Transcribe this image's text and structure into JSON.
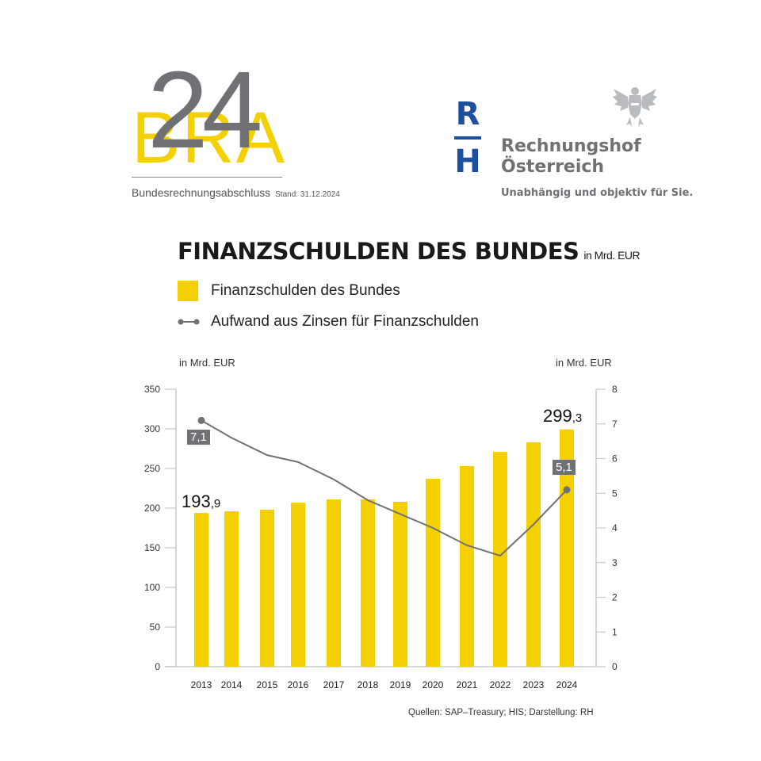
{
  "header": {
    "logo_left": {
      "letters": "BRA",
      "year": "24",
      "subtitle": "Bundesrechnungsabschluss",
      "stand": "Stand: 31.12.2024"
    },
    "logo_right": {
      "mark_top": "R",
      "mark_bottom": "H",
      "name_line1": "Rechnungshof",
      "name_line2": "Österreich",
      "tagline": "Unabhängig und objektiv für Sie.",
      "emblem": "austrian-eagle-icon"
    }
  },
  "chart_title": "FINANZSCHULDEN DES BUNDES",
  "chart_title_unit": "in Mrd. EUR",
  "legend": [
    {
      "label": "Finanzschulden des Bundes",
      "type": "bar",
      "color": "#f5d000"
    },
    {
      "label": "Aufwand aus Zinsen für Finanzschulden",
      "type": "line",
      "color": "#6f7174"
    }
  ],
  "axis_left_unit": "in Mrd. EUR",
  "axis_right_unit": "in Mrd. EUR",
  "source": "Quellen: SAP–Treasury; HIS; Darstellung: RH",
  "annotations": {
    "first_bar": {
      "main": "193",
      "dec": ",9"
    },
    "last_bar": {
      "main": "299",
      "dec": ",3"
    },
    "first_line": "7,1",
    "last_line": "5,1"
  },
  "colors": {
    "bar": "#f5d000",
    "line": "#6f7174",
    "axis": "#c5c8cc"
  },
  "chart_data": {
    "type": "bar+line",
    "title": "FINANZSCHULDEN DES BUNDES (in Mrd. EUR)",
    "categories": [
      "2013",
      "2014",
      "2015",
      "2016",
      "2017",
      "2018",
      "2019",
      "2020",
      "2021",
      "2022",
      "2023",
      "2024"
    ],
    "series": [
      {
        "name": "Finanzschulden des Bundes",
        "type": "bar",
        "axis": "left",
        "values": [
          193.9,
          196,
          198,
          207,
          211,
          211,
          208,
          237,
          253,
          271,
          283,
          299.3
        ]
      },
      {
        "name": "Aufwand aus Zinsen für Finanzschulden",
        "type": "line",
        "axis": "right",
        "values": [
          7.1,
          6.6,
          6.1,
          5.9,
          5.4,
          4.8,
          4.4,
          4.0,
          3.5,
          3.2,
          4.1,
          5.1
        ]
      }
    ],
    "ylabel_left": "in Mrd. EUR",
    "ylabel_right": "in Mrd. EUR",
    "ylim_left": [
      0,
      350
    ],
    "yticks_left": [
      0,
      50,
      100,
      150,
      200,
      250,
      300,
      350
    ],
    "ylim_right": [
      0,
      8
    ],
    "yticks_right": [
      0,
      1,
      2,
      3,
      4,
      5,
      6,
      7,
      8
    ],
    "grid": false,
    "legend_position": "top-left"
  }
}
